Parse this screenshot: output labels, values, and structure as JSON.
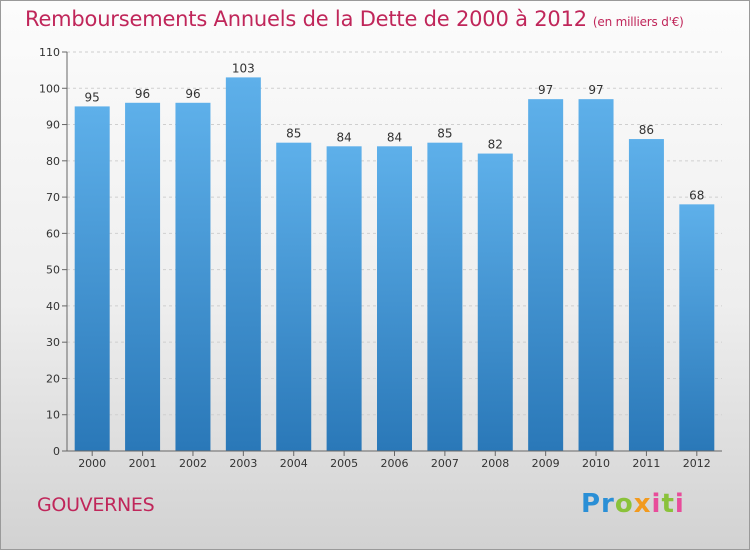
{
  "title": "Remboursements Annuels de la Dette de 2000 à 2012",
  "title_unit": "(en milliers d'€)",
  "place": "GOUVERNES",
  "logo": "Proxiti",
  "colors": {
    "title": "#c0265a",
    "bar_top": "#5eb0ea",
    "bar_bottom": "#2a78b8"
  },
  "chart_data": {
    "type": "bar",
    "title": "Remboursements Annuels de la Dette de 2000 à 2012",
    "categories": [
      "2000",
      "2001",
      "2002",
      "2003",
      "2004",
      "2005",
      "2006",
      "2007",
      "2008",
      "2009",
      "2010",
      "2011",
      "2012"
    ],
    "values": [
      95,
      96,
      96,
      103,
      85,
      84,
      84,
      85,
      82,
      97,
      97,
      86,
      68
    ],
    "ylim": [
      0,
      110
    ],
    "yticks": [
      0,
      10,
      20,
      30,
      40,
      50,
      60,
      70,
      80,
      90,
      100,
      110
    ],
    "grid": true,
    "legend": "none"
  }
}
